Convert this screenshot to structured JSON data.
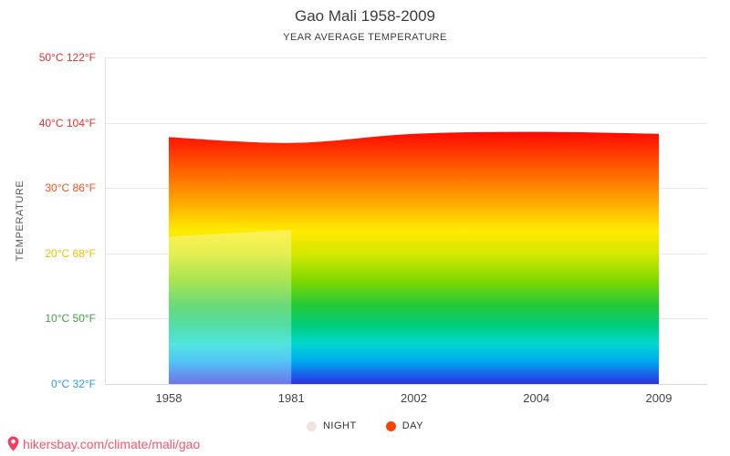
{
  "title": "Gao Mali 1958-2009",
  "subtitle": "YEAR AVERAGE TEMPERATURE",
  "footer": {
    "url": "hikersbay.com/climate/mali/gao",
    "pin_color": "#f43b5c"
  },
  "legend": [
    {
      "label": "NIGHT",
      "color": "#f2e2e2"
    },
    {
      "label": "DAY",
      "color": "#ff4200"
    }
  ],
  "chart_data": {
    "type": "area",
    "title": "Gao Mali 1958-2009",
    "subtitle": "YEAR AVERAGE TEMPERATURE",
    "ylabel": "TEMPERATURE",
    "x_labels": [
      "1958",
      "1981",
      "2002",
      "2004",
      "2009"
    ],
    "ylim": [
      0,
      50
    ],
    "grid": true,
    "legend_position": "bottom",
    "yticks": [
      {
        "label": "50°C 122°F",
        "value": 50,
        "color": "#e53030"
      },
      {
        "label": "40°C 104°F",
        "value": 40,
        "color": "#e53030"
      },
      {
        "label": "30°C 86°F",
        "value": 30,
        "color": "#f4511e"
      },
      {
        "label": "20°C 68°F",
        "value": 20,
        "color": "#eec200"
      },
      {
        "label": "10°C 50°F",
        "value": 10,
        "color": "#43a047"
      },
      {
        "label": "0°C 32°F",
        "value": 0,
        "color": "#2b9bf4"
      }
    ],
    "series": [
      {
        "name": "DAY",
        "values": [
          37.8,
          36.9,
          38.3,
          38.6,
          38.3
        ],
        "color": "#ff4200"
      },
      {
        "name": "NIGHT",
        "values": [
          22.6,
          23.6,
          null,
          null,
          null
        ],
        "overlay": "rgba(255,255,255,0.32)"
      }
    ],
    "gradient_stops": [
      {
        "offset": 0.0,
        "color": "#ff0a00"
      },
      {
        "offset": 0.09,
        "color": "#ff3e00"
      },
      {
        "offset": 0.2,
        "color": "#ff7d00"
      },
      {
        "offset": 0.3,
        "color": "#ffb600"
      },
      {
        "offset": 0.39,
        "color": "#ffea00"
      },
      {
        "offset": 0.48,
        "color": "#d8e800"
      },
      {
        "offset": 0.59,
        "color": "#7fd800"
      },
      {
        "offset": 0.69,
        "color": "#21c93c"
      },
      {
        "offset": 0.77,
        "color": "#00cd7e"
      },
      {
        "offset": 0.84,
        "color": "#00d8cf"
      },
      {
        "offset": 0.91,
        "color": "#00aaf0"
      },
      {
        "offset": 1.0,
        "color": "#2d2fe3"
      }
    ]
  }
}
